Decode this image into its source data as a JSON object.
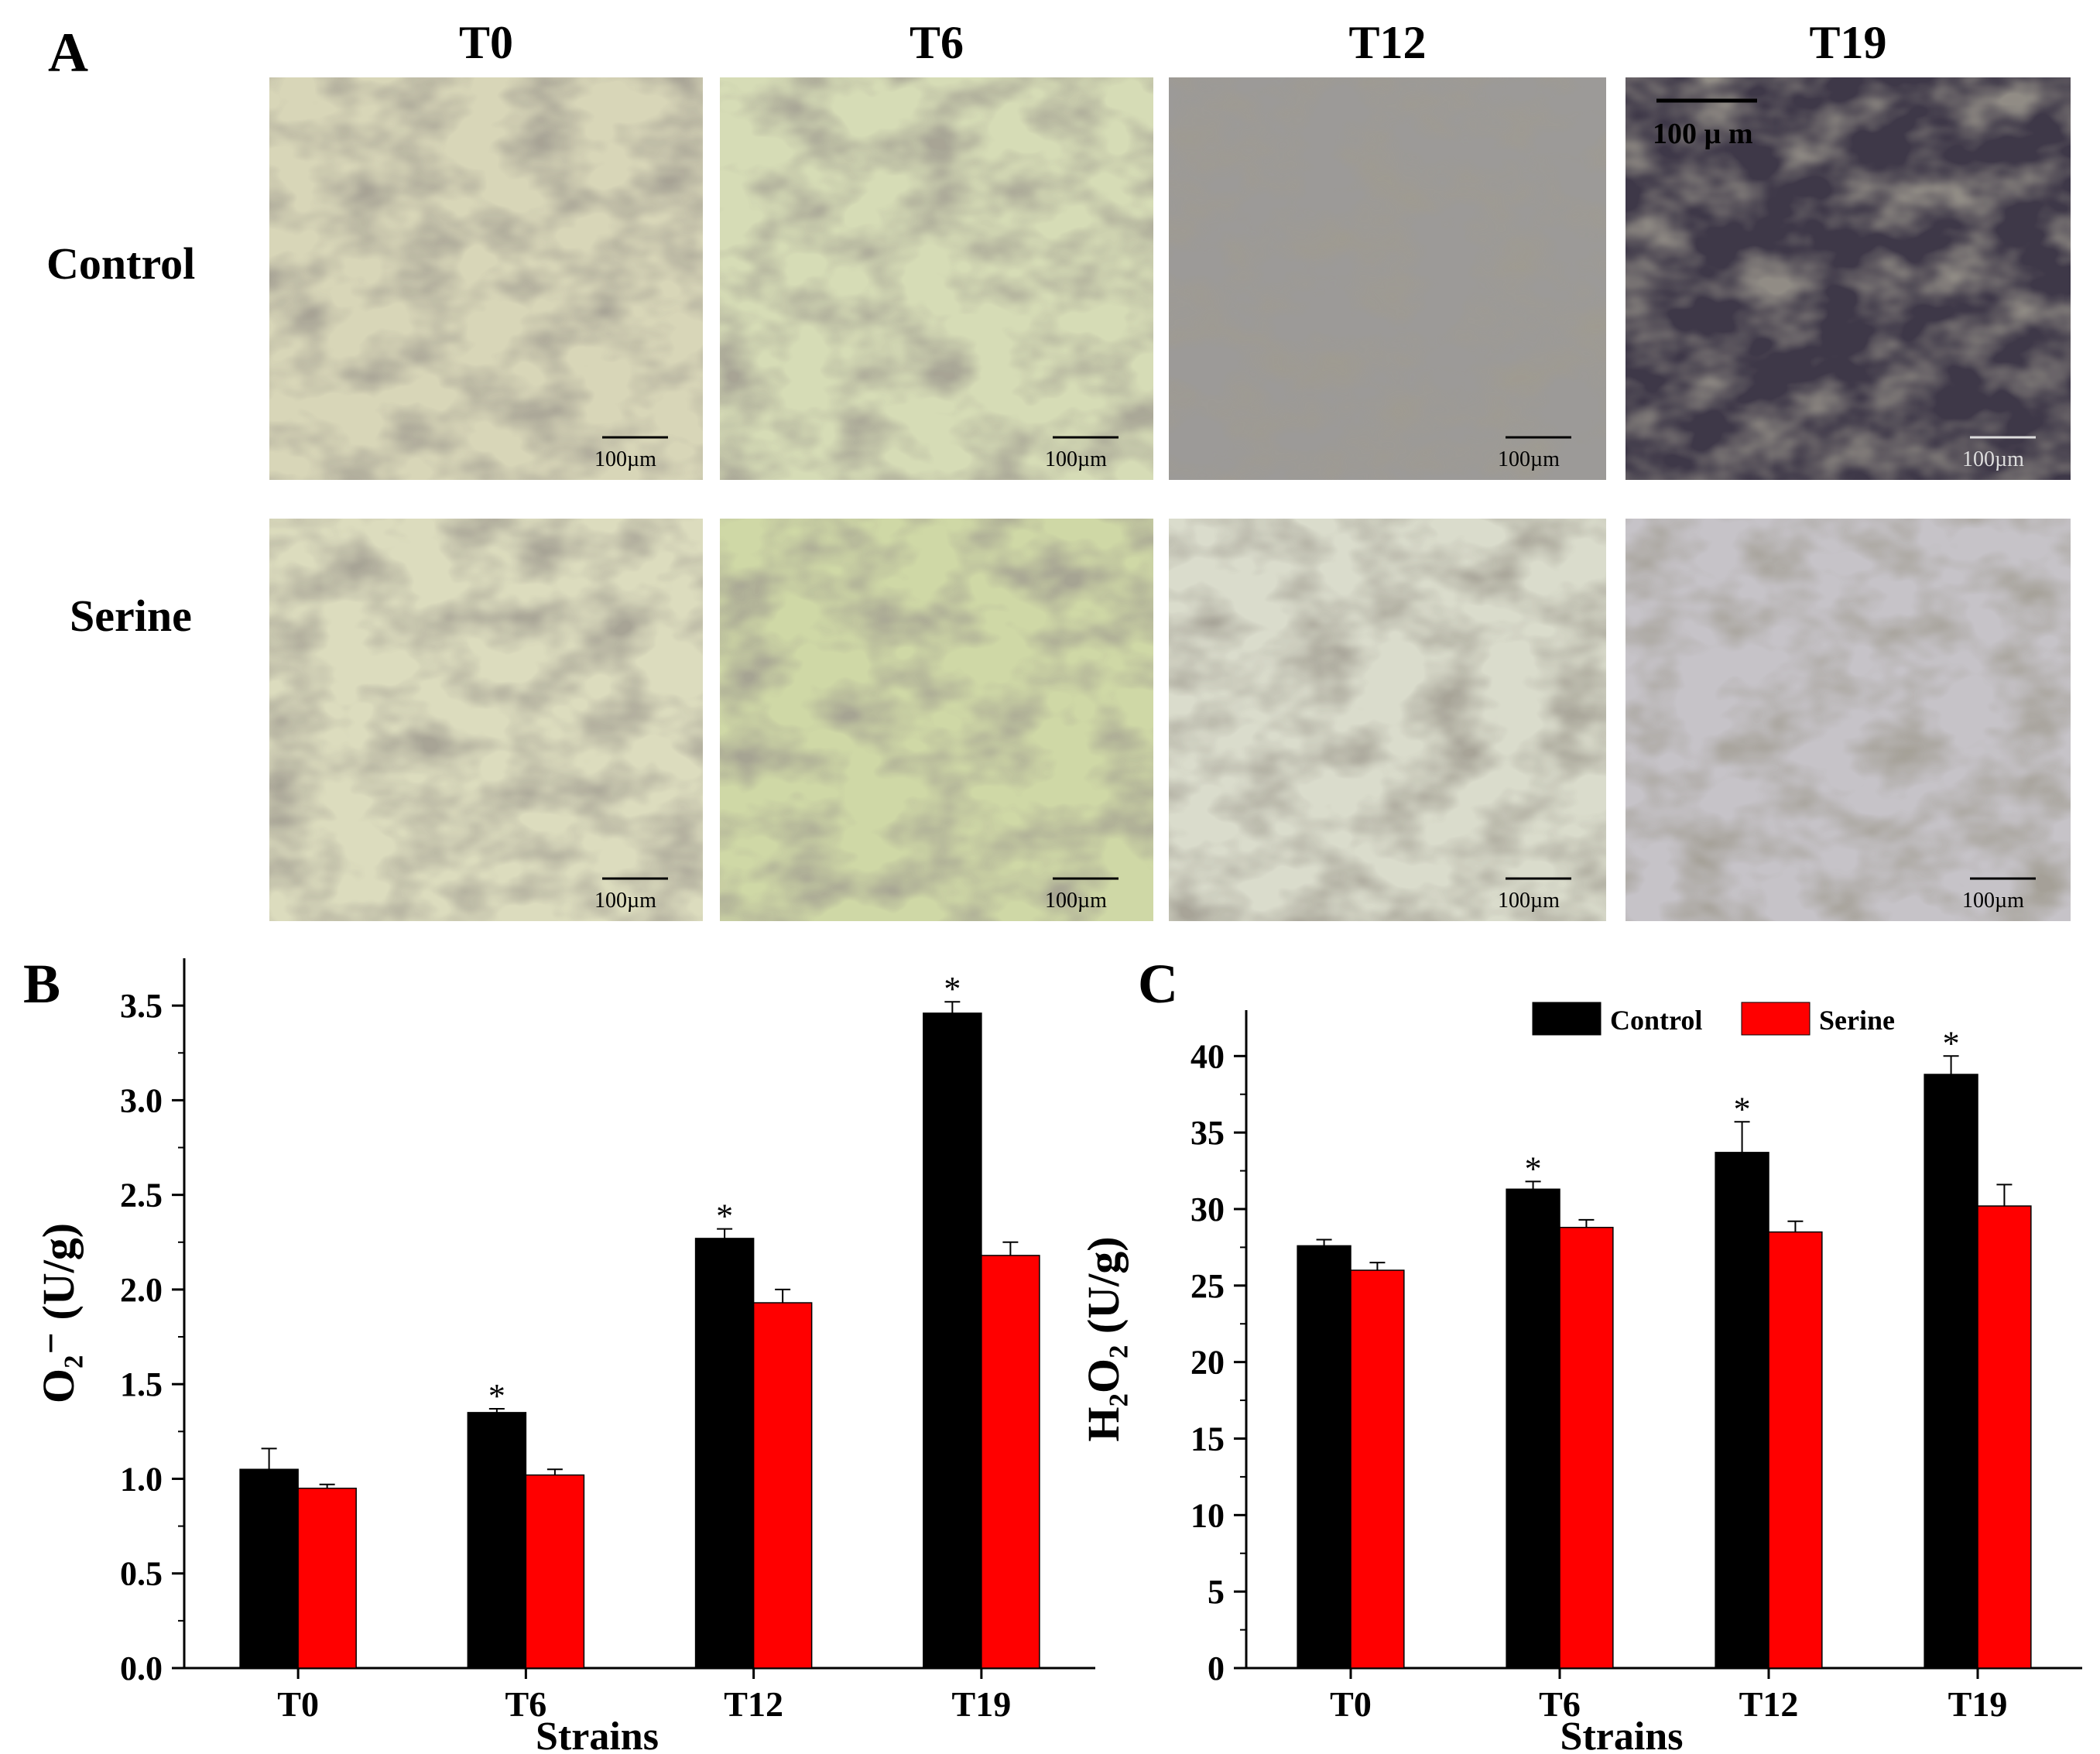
{
  "panel_a": {
    "letter": "A",
    "columns": [
      "T0",
      "T6",
      "T12",
      "T19"
    ],
    "rows": [
      "Control",
      "Serine"
    ],
    "scalebar_label": "100µm",
    "scalebar_label_alt": "100 µ m",
    "micrograph_tints": {
      "Control": [
        "#d8d6b8",
        "#d6dcb6",
        "#9c9a98",
        "#3e3848"
      ],
      "Serine": [
        "#dcdcbe",
        "#cfd8a6",
        "#dadccc",
        "#c6c3c8"
      ]
    }
  },
  "chart_data": [
    {
      "letter": "B",
      "type": "bar",
      "categories": [
        "T0",
        "T6",
        "T12",
        "T19"
      ],
      "series": [
        {
          "name": "Control",
          "color": "#000000",
          "values": [
            1.05,
            1.35,
            2.27,
            3.46
          ],
          "errors": [
            0.11,
            0.02,
            0.05,
            0.06
          ]
        },
        {
          "name": "Serine",
          "color": "#ff0000",
          "values": [
            0.95,
            1.02,
            1.93,
            2.18
          ],
          "errors": [
            0.02,
            0.03,
            0.07,
            0.07
          ]
        }
      ],
      "significance": [
        "",
        "*",
        "*",
        "*"
      ],
      "xlabel": "Strains",
      "ylabel": "O₂⁻ (U/g)",
      "ylim": [
        0,
        3.75
      ],
      "yticks": [
        "0.0",
        "0.5",
        "1.0",
        "1.5",
        "2.0",
        "2.5",
        "3.0",
        "3.5"
      ],
      "grid": false
    },
    {
      "letter": "C",
      "type": "bar",
      "categories": [
        "T0",
        "T6",
        "T12",
        "T19"
      ],
      "series": [
        {
          "name": "Control",
          "color": "#000000",
          "values": [
            27.6,
            31.3,
            33.7,
            38.8
          ],
          "errors": [
            0.4,
            0.5,
            2.0,
            1.2
          ]
        },
        {
          "name": "Serine",
          "color": "#ff0000",
          "values": [
            26.0,
            28.8,
            28.5,
            30.2
          ],
          "errors": [
            0.5,
            0.5,
            0.7,
            1.4
          ]
        }
      ],
      "significance": [
        "",
        "*",
        "*",
        "*"
      ],
      "xlabel": "Strains",
      "ylabel": "H₂O₂ (U/g)",
      "ylim": [
        0,
        43
      ],
      "yticks": [
        "0",
        "5",
        "10",
        "15",
        "20",
        "25",
        "30",
        "35",
        "40"
      ],
      "legend": "top",
      "grid": false
    }
  ]
}
